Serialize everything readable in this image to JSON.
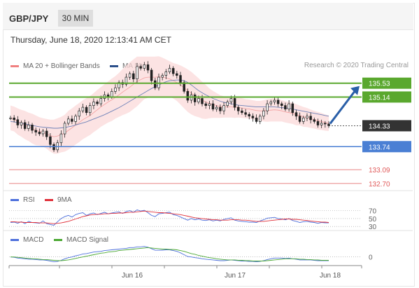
{
  "header": {
    "symbol": "GBP/JPY",
    "timeframe": "30 MIN"
  },
  "datetime": "Thursday, June 18, 2020 12:13:41 AM CET",
  "legend": {
    "bollinger": {
      "label": "MA 20 + Bollinger Bands",
      "color": "#f08080"
    },
    "ma50": {
      "label": "MA 50",
      "color": "#2b4f8a"
    }
  },
  "credit": "Research © 2020 Trading Central",
  "colors": {
    "resistance": "#5aa82e",
    "support": "#4a7fd4",
    "lower_target": "#e05a5a",
    "current": "#333333",
    "arrow": "#2a5fa8"
  },
  "chart_data": [
    {
      "type": "candlestick",
      "x_ticks": [
        "Jun 16",
        "Jun 17",
        "Jun 18"
      ],
      "ylim": [
        132.5,
        135.9
      ],
      "levels": [
        {
          "label": "135.53",
          "value": 135.53,
          "kind": "resistance"
        },
        {
          "label": "135.14",
          "value": 135.14,
          "kind": "resistance"
        },
        {
          "label": "134.33",
          "value": 134.33,
          "kind": "current"
        },
        {
          "label": "133.74",
          "value": 133.74,
          "kind": "support"
        },
        {
          "label": "133.09",
          "value": 133.09,
          "kind": "lower_target"
        },
        {
          "label": "132.70",
          "value": 132.7,
          "kind": "lower_target"
        }
      ],
      "close_series": [
        134.55,
        134.5,
        134.35,
        134.42,
        134.25,
        134.35,
        134.2,
        134.15,
        134.1,
        134.18,
        134.02,
        133.8,
        133.65,
        133.85,
        134.1,
        134.4,
        134.52,
        134.45,
        134.6,
        134.75,
        134.85,
        134.7,
        134.9,
        135.0,
        134.95,
        135.1,
        135.2,
        135.15,
        135.3,
        135.4,
        135.55,
        135.5,
        135.7,
        135.8,
        135.65,
        136.0,
        135.95,
        136.05,
        135.9,
        135.6,
        135.4,
        135.7,
        135.75,
        135.85,
        135.95,
        135.8,
        135.75,
        135.55,
        135.3,
        135.05,
        135.2,
        135.0,
        135.1,
        134.95,
        134.9,
        134.95,
        134.8,
        134.85,
        134.75,
        134.9,
        135.0,
        135.1,
        134.85,
        134.75,
        134.7,
        134.65,
        134.6,
        134.55,
        134.45,
        134.6,
        134.75,
        134.95,
        135.0,
        135.05,
        134.95,
        134.9,
        134.8,
        134.95,
        134.7,
        134.6,
        134.45,
        134.55,
        134.6,
        134.5,
        134.45,
        134.35,
        134.4,
        134.38,
        134.33
      ],
      "ma20": [
        134.55,
        134.52,
        134.45,
        134.4,
        134.35,
        134.3,
        134.25,
        134.2,
        134.17,
        134.14,
        134.1,
        134.05,
        134.02,
        134.04,
        134.08,
        134.12,
        134.2,
        134.27,
        134.35,
        134.42,
        134.5,
        134.56,
        134.62,
        134.7,
        134.78,
        134.86,
        134.93,
        135.0,
        135.06,
        135.13,
        135.2,
        135.28,
        135.35,
        135.42,
        135.5,
        135.58,
        135.63,
        135.68,
        135.7,
        135.7,
        135.7,
        135.71,
        135.7,
        135.68,
        135.65,
        135.6,
        135.55,
        135.48,
        135.4,
        135.32,
        135.25,
        135.18,
        135.12,
        135.05,
        135.0,
        134.96,
        134.93,
        134.9,
        134.87,
        134.86,
        134.86,
        134.86,
        134.85,
        134.84,
        134.83,
        134.81,
        134.8,
        134.78,
        134.76,
        134.75,
        134.75,
        134.76,
        134.77,
        134.78,
        134.77,
        134.75,
        134.72,
        134.7,
        134.68,
        134.64,
        134.62,
        134.58,
        134.56,
        134.53,
        134.5,
        134.47,
        134.45,
        134.42,
        134.4
      ],
      "bb_width": [
        0.35,
        0.35,
        0.37,
        0.38,
        0.4,
        0.4,
        0.42,
        0.42,
        0.4,
        0.4,
        0.42,
        0.45,
        0.48,
        0.5,
        0.5,
        0.52,
        0.55,
        0.55,
        0.55,
        0.55,
        0.55,
        0.55,
        0.55,
        0.55,
        0.56,
        0.56,
        0.57,
        0.58,
        0.6,
        0.6,
        0.62,
        0.65,
        0.68,
        0.7,
        0.7,
        0.7,
        0.65,
        0.6,
        0.58,
        0.58,
        0.58,
        0.58,
        0.55,
        0.52,
        0.5,
        0.5,
        0.52,
        0.55,
        0.58,
        0.6,
        0.6,
        0.58,
        0.55,
        0.52,
        0.48,
        0.42,
        0.38,
        0.35,
        0.32,
        0.3,
        0.3,
        0.3,
        0.3,
        0.28,
        0.28,
        0.27,
        0.27,
        0.27,
        0.27,
        0.28,
        0.3,
        0.32,
        0.32,
        0.33,
        0.32,
        0.3,
        0.3,
        0.3,
        0.3,
        0.3,
        0.28,
        0.28,
        0.27,
        0.26,
        0.25,
        0.25,
        0.24,
        0.23,
        0.22
      ],
      "ma50": [
        134.45,
        134.44,
        134.42,
        134.4,
        134.38,
        134.36,
        134.34,
        134.32,
        134.3,
        134.29,
        134.28,
        134.27,
        134.26,
        134.26,
        134.27,
        134.28,
        134.3,
        134.32,
        134.35,
        134.38,
        134.41,
        134.44,
        134.48,
        134.52,
        134.56,
        134.6,
        134.64,
        134.69,
        134.74,
        134.79,
        134.84,
        134.9,
        134.96,
        135.02,
        135.08,
        135.14,
        135.2,
        135.26,
        135.32,
        135.38,
        135.43,
        135.48,
        135.53,
        135.57,
        135.6,
        135.61,
        135.62,
        135.62,
        135.6,
        135.55,
        135.48,
        135.4,
        135.32,
        135.26,
        135.2,
        135.15,
        135.1,
        135.06,
        135.02,
        134.99,
        134.97,
        134.95,
        134.93,
        134.91,
        134.9,
        134.89,
        134.88,
        134.87,
        134.86,
        134.86,
        134.86,
        134.86,
        134.86,
        134.86,
        134.85,
        134.84,
        134.83,
        134.82,
        134.8,
        134.78,
        134.76,
        134.74,
        134.72,
        134.7,
        134.68,
        134.66,
        134.64,
        134.62,
        134.6
      ]
    },
    {
      "type": "line",
      "name": "RSI",
      "legend": [
        {
          "label": "RSI",
          "color": "#4d6fdc"
        },
        {
          "label": "9MA",
          "color": "#e0303a"
        }
      ],
      "ylim": [
        25,
        80
      ],
      "y_ticks": [
        "70",
        "50",
        "30"
      ],
      "y_tick_values": [
        70,
        50,
        30
      ],
      "rsi": [
        40,
        41,
        38,
        42,
        37,
        43,
        40,
        39,
        38,
        44,
        37,
        35,
        33,
        42,
        50,
        55,
        58,
        54,
        60,
        63,
        65,
        58,
        62,
        64,
        60,
        63,
        66,
        62,
        64,
        66,
        67,
        63,
        68,
        70,
        66,
        72,
        69,
        71,
        65,
        58,
        55,
        62,
        63,
        65,
        66,
        60,
        58,
        54,
        50,
        46,
        50,
        47,
        49,
        46,
        45,
        47,
        44,
        46,
        44,
        48,
        50,
        52,
        46,
        44,
        43,
        42,
        41,
        41,
        40,
        44,
        47,
        51,
        52,
        53,
        50,
        49,
        47,
        50,
        45,
        43,
        40,
        42,
        43,
        41,
        40,
        38,
        40,
        39,
        39
      ],
      "ma9": [
        42,
        42,
        41,
        41,
        40,
        40,
        40,
        40,
        39,
        39,
        39,
        38,
        37,
        38,
        39,
        41,
        43,
        46,
        49,
        52,
        55,
        57,
        59,
        60,
        61,
        61,
        62,
        62,
        63,
        63,
        64,
        64,
        65,
        66,
        66,
        67,
        68,
        69,
        68,
        67,
        66,
        65,
        65,
        64,
        63,
        62,
        61,
        60,
        58,
        56,
        54,
        52,
        51,
        50,
        49,
        48,
        47,
        47,
        46,
        46,
        46,
        47,
        47,
        47,
        46,
        46,
        45,
        44,
        43,
        43,
        43,
        44,
        45,
        46,
        47,
        48,
        49,
        49,
        48,
        48,
        47,
        46,
        45,
        44,
        43,
        42,
        41,
        41,
        40
      ]
    },
    {
      "type": "line",
      "name": "MACD",
      "legend": [
        {
          "label": "MACD",
          "color": "#4d6fdc"
        },
        {
          "label": "MACD Signal",
          "color": "#4aa832"
        }
      ],
      "ylim": [
        -0.25,
        0.35
      ],
      "y_ticks": [
        "0"
      ],
      "y_tick_values": [
        0
      ],
      "macd": [
        0.0,
        -0.01,
        -0.03,
        -0.04,
        -0.05,
        -0.06,
        -0.06,
        -0.07,
        -0.08,
        -0.08,
        -0.09,
        -0.11,
        -0.13,
        -0.12,
        -0.09,
        -0.05,
        -0.02,
        0.0,
        0.03,
        0.05,
        0.08,
        0.09,
        0.11,
        0.13,
        0.14,
        0.15,
        0.17,
        0.18,
        0.19,
        0.2,
        0.21,
        0.22,
        0.23,
        0.25,
        0.25,
        0.27,
        0.27,
        0.28,
        0.26,
        0.22,
        0.18,
        0.18,
        0.18,
        0.19,
        0.19,
        0.17,
        0.15,
        0.11,
        0.06,
        0.01,
        0.0,
        -0.02,
        -0.03,
        -0.05,
        -0.06,
        -0.07,
        -0.08,
        -0.09,
        -0.1,
        -0.1,
        -0.09,
        -0.08,
        -0.09,
        -0.1,
        -0.11,
        -0.11,
        -0.12,
        -0.12,
        -0.13,
        -0.12,
        -0.1,
        -0.07,
        -0.05,
        -0.03,
        -0.03,
        -0.03,
        -0.04,
        -0.03,
        -0.05,
        -0.06,
        -0.08,
        -0.08,
        -0.08,
        -0.08,
        -0.09,
        -0.1,
        -0.1,
        -0.1,
        -0.1
      ],
      "signal": [
        0.0,
        0.0,
        -0.01,
        -0.02,
        -0.03,
        -0.04,
        -0.05,
        -0.05,
        -0.06,
        -0.07,
        -0.07,
        -0.08,
        -0.09,
        -0.1,
        -0.1,
        -0.09,
        -0.08,
        -0.06,
        -0.04,
        -0.02,
        0.0,
        0.02,
        0.04,
        0.06,
        0.08,
        0.1,
        0.11,
        0.13,
        0.14,
        0.15,
        0.17,
        0.18,
        0.19,
        0.2,
        0.21,
        0.22,
        0.23,
        0.24,
        0.25,
        0.24,
        0.23,
        0.22,
        0.21,
        0.21,
        0.2,
        0.2,
        0.19,
        0.17,
        0.15,
        0.12,
        0.09,
        0.07,
        0.04,
        0.02,
        0.0,
        -0.02,
        -0.03,
        -0.05,
        -0.06,
        -0.07,
        -0.08,
        -0.08,
        -0.08,
        -0.09,
        -0.09,
        -0.1,
        -0.1,
        -0.11,
        -0.11,
        -0.11,
        -0.11,
        -0.1,
        -0.09,
        -0.08,
        -0.07,
        -0.06,
        -0.05,
        -0.05,
        -0.05,
        -0.05,
        -0.06,
        -0.06,
        -0.07,
        -0.07,
        -0.08,
        -0.08,
        -0.09,
        -0.09,
        -0.09
      ]
    }
  ]
}
